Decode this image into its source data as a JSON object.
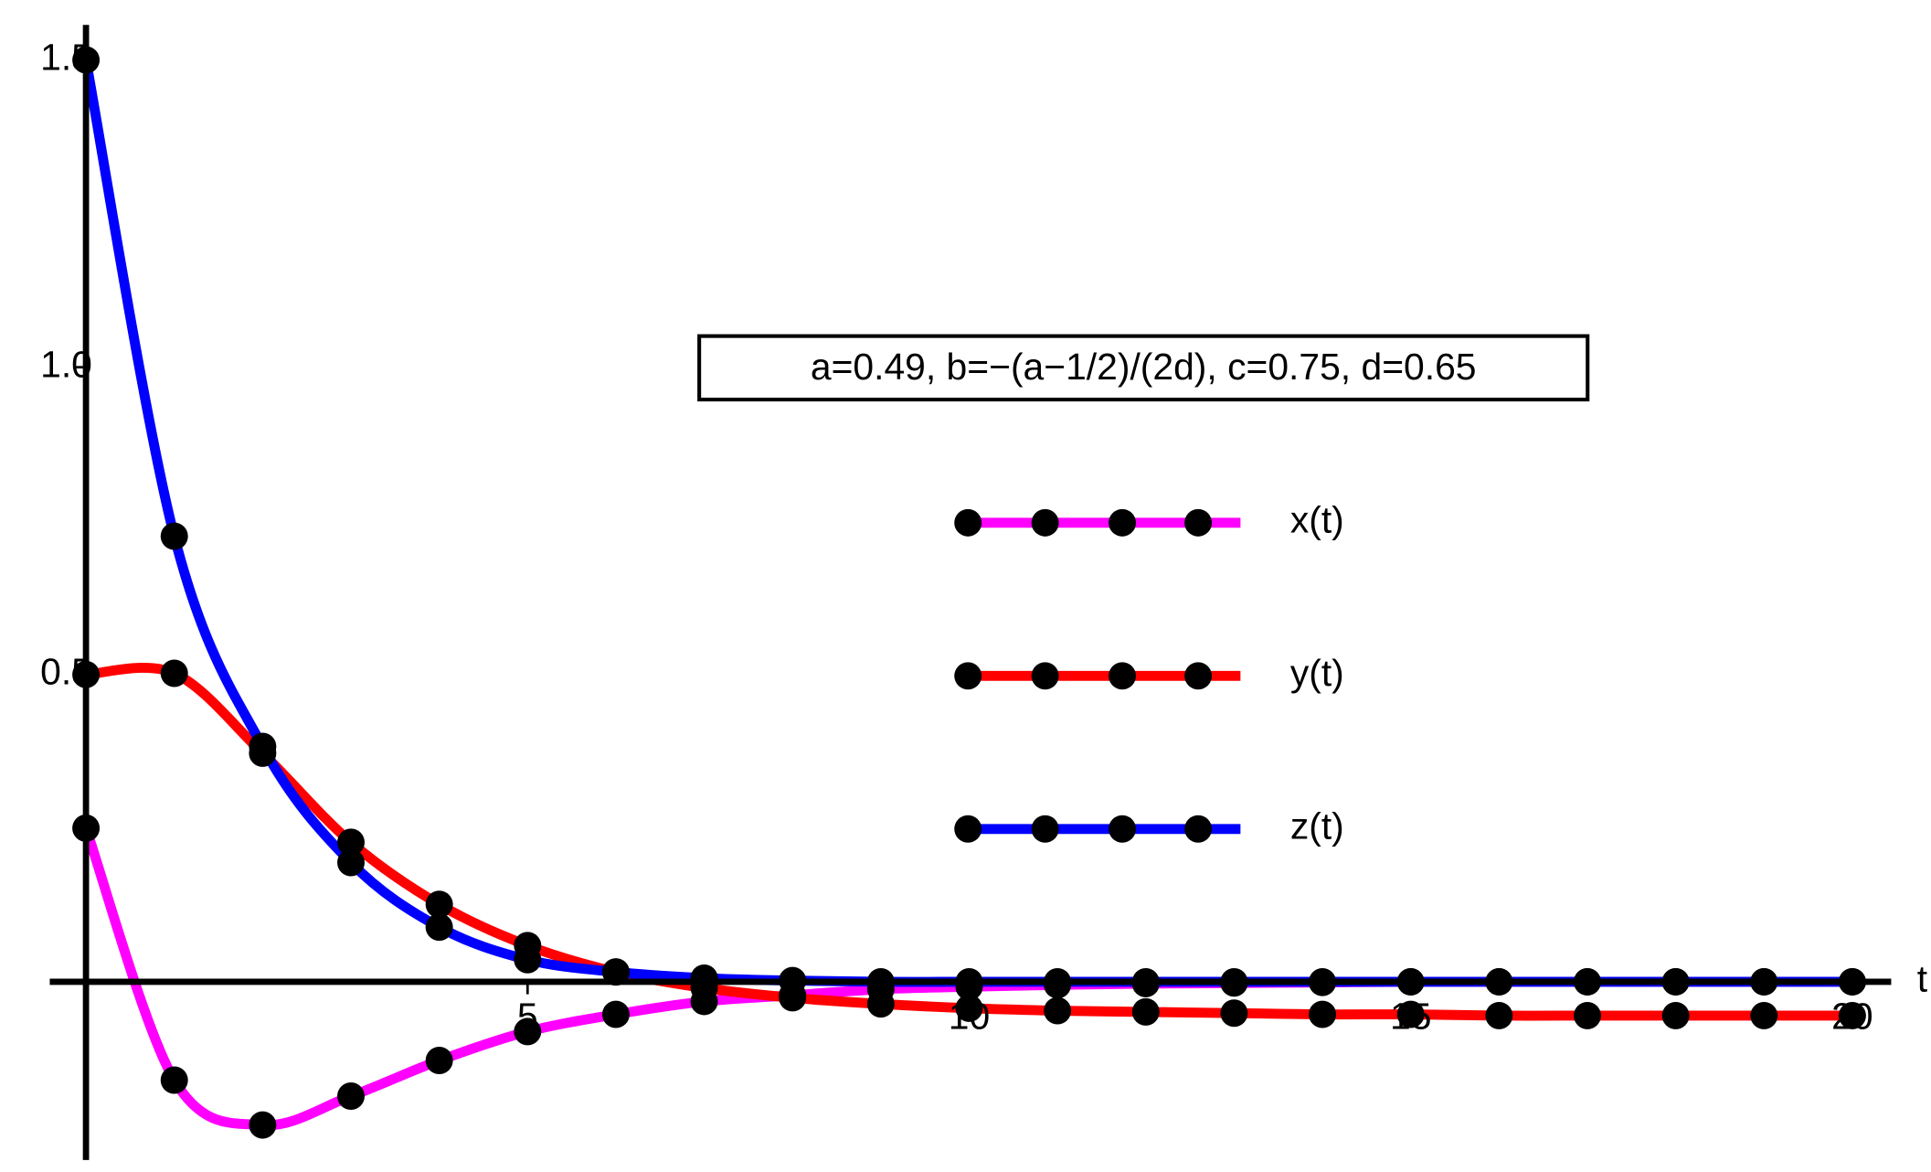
{
  "chart_data": {
    "type": "line",
    "annotation": "a=0.49, b=−(a−1/2)/(2d), c=0.75, d=0.65",
    "x_label": "t",
    "x": [
      0,
      1,
      2,
      3,
      4,
      5,
      6,
      7,
      8,
      9,
      10,
      11,
      12,
      13,
      14,
      15,
      16,
      17,
      18,
      19,
      20
    ],
    "series": [
      {
        "name": "x(t)",
        "color": "#ff00ff",
        "values": [
          0.25,
          -0.16,
          -0.233,
          -0.186,
          -0.128,
          -0.081,
          -0.053,
          -0.032,
          -0.022,
          -0.012,
          -0.008,
          -0.005,
          -0.003,
          -0.002,
          -0.001,
          0,
          0,
          0,
          0,
          0,
          0
        ]
      },
      {
        "name": "y(t)",
        "color": "#ff0000",
        "values": [
          0.5,
          0.502,
          0.372,
          0.227,
          0.126,
          0.059,
          0.016,
          -0.01,
          -0.026,
          -0.036,
          -0.043,
          -0.047,
          -0.049,
          -0.051,
          -0.053,
          -0.053,
          -0.055,
          -0.055,
          -0.055,
          -0.055,
          -0.055
        ]
      },
      {
        "name": "z(t)",
        "color": "#0000ff",
        "values": [
          1.5,
          0.725,
          0.383,
          0.194,
          0.089,
          0.036,
          0.016,
          0.006,
          0.002,
          0,
          0,
          0,
          0,
          0,
          0,
          0,
          0,
          0,
          0,
          0,
          0
        ]
      }
    ],
    "xlim": [
      -0.41,
      20.44
    ],
    "ylim": [
      -0.29,
      1.557
    ],
    "xticks": [
      5,
      10,
      15,
      20
    ],
    "yticks": [
      0.5,
      {
        "value": 1,
        "label": "1.0"
      },
      1.5
    ]
  }
}
